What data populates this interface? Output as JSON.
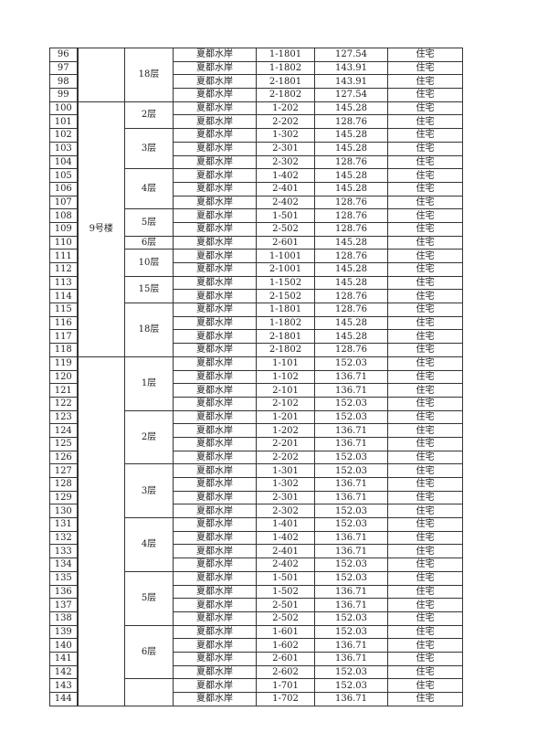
{
  "groups": [
    {
      "building": "",
      "floors": [
        {
          "floor": "18层",
          "rows": [
            {
              "no": "96",
              "project": "夏都水岸",
              "unit": "1-1801",
              "area": "127.54",
              "use": "住宅"
            },
            {
              "no": "97",
              "project": "夏都水岸",
              "unit": "1-1802",
              "area": "143.91",
              "use": "住宅"
            },
            {
              "no": "98",
              "project": "夏都水岸",
              "unit": "2-1801",
              "area": "143.91",
              "use": "住宅"
            },
            {
              "no": "99",
              "project": "夏都水岸",
              "unit": "2-1802",
              "area": "127.54",
              "use": "住宅"
            }
          ]
        }
      ]
    },
    {
      "building": "9号楼",
      "floors": [
        {
          "floor": "2层",
          "rows": [
            {
              "no": "100",
              "project": "夏都水岸",
              "unit": "1-202",
              "area": "145.28",
              "use": "住宅"
            },
            {
              "no": "101",
              "project": "夏都水岸",
              "unit": "2-202",
              "area": "128.76",
              "use": "住宅"
            }
          ]
        },
        {
          "floor": "3层",
          "rows": [
            {
              "no": "102",
              "project": "夏都水岸",
              "unit": "1-302",
              "area": "145.28",
              "use": "住宅"
            },
            {
              "no": "103",
              "project": "夏都水岸",
              "unit": "2-301",
              "area": "145.28",
              "use": "住宅"
            },
            {
              "no": "104",
              "project": "夏都水岸",
              "unit": "2-302",
              "area": "128.76",
              "use": "住宅"
            }
          ]
        },
        {
          "floor": "4层",
          "rows": [
            {
              "no": "105",
              "project": "夏都水岸",
              "unit": "1-402",
              "area": "145.28",
              "use": "住宅"
            },
            {
              "no": "106",
              "project": "夏都水岸",
              "unit": "2-401",
              "area": "145.28",
              "use": "住宅"
            },
            {
              "no": "107",
              "project": "夏都水岸",
              "unit": "2-402",
              "area": "128.76",
              "use": "住宅"
            }
          ]
        },
        {
          "floor": "5层",
          "rows": [
            {
              "no": "108",
              "project": "夏都水岸",
              "unit": "1-501",
              "area": "128.76",
              "use": "住宅"
            },
            {
              "no": "109",
              "project": "夏都水岸",
              "unit": "2-502",
              "area": "128.76",
              "use": "住宅"
            }
          ]
        },
        {
          "floor": "6层",
          "rows": [
            {
              "no": "110",
              "project": "夏都水岸",
              "unit": "2-601",
              "area": "145.28",
              "use": "住宅"
            }
          ]
        },
        {
          "floor": "10层",
          "rows": [
            {
              "no": "111",
              "project": "夏都水岸",
              "unit": "1-1001",
              "area": "128.76",
              "use": "住宅"
            },
            {
              "no": "112",
              "project": "夏都水岸",
              "unit": "2-1001",
              "area": "145.28",
              "use": "住宅"
            }
          ]
        },
        {
          "floor": "15层",
          "rows": [
            {
              "no": "113",
              "project": "夏都水岸",
              "unit": "1-1502",
              "area": "145.28",
              "use": "住宅"
            },
            {
              "no": "114",
              "project": "夏都水岸",
              "unit": "2-1502",
              "area": "128.76",
              "use": "住宅"
            }
          ]
        },
        {
          "floor": "18层",
          "rows": [
            {
              "no": "115",
              "project": "夏都水岸",
              "unit": "1-1801",
              "area": "128.76",
              "use": "住宅"
            },
            {
              "no": "116",
              "project": "夏都水岸",
              "unit": "1-1802",
              "area": "145.28",
              "use": "住宅"
            },
            {
              "no": "117",
              "project": "夏都水岸",
              "unit": "2-1801",
              "area": "145.28",
              "use": "住宅"
            },
            {
              "no": "118",
              "project": "夏都水岸",
              "unit": "2-1802",
              "area": "128.76",
              "use": "住宅"
            }
          ]
        }
      ]
    },
    {
      "building": "",
      "floors": [
        {
          "floor": "1层",
          "rows": [
            {
              "no": "119",
              "project": "夏都水岸",
              "unit": "1-101",
              "area": "152.03",
              "use": "住宅"
            },
            {
              "no": "120",
              "project": "夏都水岸",
              "unit": "1-102",
              "area": "136.71",
              "use": "住宅"
            },
            {
              "no": "121",
              "project": "夏都水岸",
              "unit": "2-101",
              "area": "136.71",
              "use": "住宅"
            },
            {
              "no": "122",
              "project": "夏都水岸",
              "unit": "2-102",
              "area": "152.03",
              "use": "住宅"
            }
          ]
        },
        {
          "floor": "2层",
          "rows": [
            {
              "no": "123",
              "project": "夏都水岸",
              "unit": "1-201",
              "area": "152.03",
              "use": "住宅"
            },
            {
              "no": "124",
              "project": "夏都水岸",
              "unit": "1-202",
              "area": "136.71",
              "use": "住宅"
            },
            {
              "no": "125",
              "project": "夏都水岸",
              "unit": "2-201",
              "area": "136.71",
              "use": "住宅"
            },
            {
              "no": "126",
              "project": "夏都水岸",
              "unit": "2-202",
              "area": "152.03",
              "use": "住宅"
            }
          ]
        },
        {
          "floor": "3层",
          "rows": [
            {
              "no": "127",
              "project": "夏都水岸",
              "unit": "1-301",
              "area": "152.03",
              "use": "住宅"
            },
            {
              "no": "128",
              "project": "夏都水岸",
              "unit": "1-302",
              "area": "136.71",
              "use": "住宅"
            },
            {
              "no": "129",
              "project": "夏都水岸",
              "unit": "2-301",
              "area": "136.71",
              "use": "住宅"
            },
            {
              "no": "130",
              "project": "夏都水岸",
              "unit": "2-302",
              "area": "152.03",
              "use": "住宅"
            }
          ]
        },
        {
          "floor": "4层",
          "rows": [
            {
              "no": "131",
              "project": "夏都水岸",
              "unit": "1-401",
              "area": "152.03",
              "use": "住宅"
            },
            {
              "no": "132",
              "project": "夏都水岸",
              "unit": "1-402",
              "area": "136.71",
              "use": "住宅"
            },
            {
              "no": "133",
              "project": "夏都水岸",
              "unit": "2-401",
              "area": "136.71",
              "use": "住宅"
            },
            {
              "no": "134",
              "project": "夏都水岸",
              "unit": "2-402",
              "area": "152.03",
              "use": "住宅"
            }
          ]
        },
        {
          "floor": "5层",
          "rows": [
            {
              "no": "135",
              "project": "夏都水岸",
              "unit": "1-501",
              "area": "152.03",
              "use": "住宅"
            },
            {
              "no": "136",
              "project": "夏都水岸",
              "unit": "1-502",
              "area": "136.71",
              "use": "住宅"
            },
            {
              "no": "137",
              "project": "夏都水岸",
              "unit": "2-501",
              "area": "136.71",
              "use": "住宅"
            },
            {
              "no": "138",
              "project": "夏都水岸",
              "unit": "2-502",
              "area": "152.03",
              "use": "住宅"
            }
          ]
        },
        {
          "floor": "6层",
          "rows": [
            {
              "no": "139",
              "project": "夏都水岸",
              "unit": "1-601",
              "area": "152.03",
              "use": "住宅"
            },
            {
              "no": "140",
              "project": "夏都水岸",
              "unit": "1-602",
              "area": "136.71",
              "use": "住宅"
            },
            {
              "no": "141",
              "project": "夏都水岸",
              "unit": "2-601",
              "area": "136.71",
              "use": "住宅"
            },
            {
              "no": "142",
              "project": "夏都水岸",
              "unit": "2-602",
              "area": "152.03",
              "use": "住宅"
            }
          ]
        },
        {
          "floor": "",
          "rows": [
            {
              "no": "143",
              "project": "夏都水岸",
              "unit": "1-701",
              "area": "152.03",
              "use": "住宅"
            },
            {
              "no": "144",
              "project": "夏都水岸",
              "unit": "1-702",
              "area": "136.71",
              "use": "住宅"
            }
          ]
        }
      ]
    }
  ]
}
